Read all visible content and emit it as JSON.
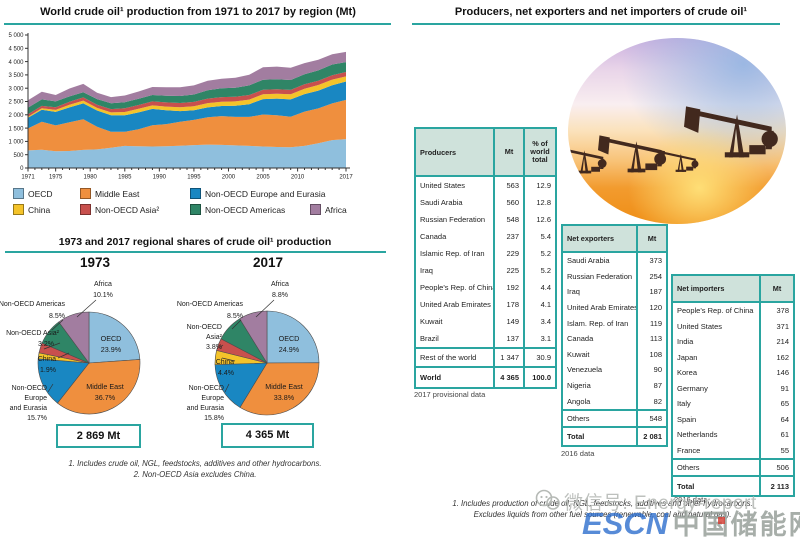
{
  "left_panel": {
    "shares_title": "1973 and 2017 regional shares of crude oil¹ production",
    "footnotes": [
      "1. Includes crude oil, NGL, feedstocks, additives and other hydrocarbons.",
      "2. Non-OECD Asia excludes China."
    ]
  },
  "legend": {
    "items": [
      {
        "label": "OECD",
        "color": "#8fbfdd"
      },
      {
        "label": "Middle East",
        "color": "#ef8f3e"
      },
      {
        "label": "Non-OECD Europe and Eurasia",
        "color": "#1987c2"
      },
      {
        "label": "China",
        "color": "#f4c32a"
      },
      {
        "label": "Non-OECD Asia²",
        "color": "#c8504d"
      },
      {
        "label": "Non-OECD Americas",
        "color": "#2f8566"
      },
      {
        "label": "Africa",
        "color": "#a27da0"
      }
    ]
  },
  "right_panel": {
    "title": "Producers, net exporters and net importers of crude oil¹",
    "photo": "oil-pumpjacks-at-sunset",
    "footnotes": [
      "1. Includes production of crude oil, NGL, feedstocks, additives and other hydrocarbons.",
      "Excludes liquids from other fuel sources (renewable, coal and natural gas)."
    ]
  },
  "watermark": {
    "wechat_label": "微信号: Energy-report",
    "logo_escn": "ESCN",
    "logo_cn": "中国储能网"
  },
  "chart_data": [
    {
      "id": "world_production_by_region",
      "type": "area",
      "stacked": true,
      "title": "World crude oil¹ production from 1971 to 2017 by region (Mt)",
      "ylabel": "Mt",
      "ylim": [
        0,
        5000
      ],
      "ytick_step": 500,
      "xtick_labels": [
        1971,
        1975,
        1980,
        1985,
        1990,
        1995,
        2000,
        2005,
        2010,
        2017
      ],
      "x": [
        1971,
        1973,
        1975,
        1977,
        1979,
        1981,
        1983,
        1985,
        1987,
        1989,
        1991,
        1993,
        1995,
        1997,
        1999,
        2001,
        2003,
        2005,
        2007,
        2009,
        2011,
        2013,
        2015,
        2017
      ],
      "series": [
        {
          "name": "OECD",
          "color": "#8fbfdd",
          "values": [
            660,
            686,
            630,
            640,
            680,
            700,
            760,
            830,
            820,
            810,
            820,
            840,
            860,
            880,
            870,
            850,
            830,
            810,
            790,
            780,
            830,
            930,
            1050,
            1087
          ]
        },
        {
          "name": "Middle East",
          "color": "#ef8f3e",
          "values": [
            830,
            1053,
            970,
            1080,
            1150,
            850,
            600,
            530,
            640,
            800,
            830,
            900,
            950,
            1030,
            1080,
            1070,
            1090,
            1200,
            1190,
            1150,
            1290,
            1310,
            1380,
            1475
          ]
        },
        {
          "name": "Non-OECD Europe and Eurasia",
          "color": "#1987c2",
          "values": [
            400,
            450,
            510,
            560,
            600,
            610,
            625,
            620,
            630,
            610,
            520,
            400,
            360,
            370,
            380,
            420,
            480,
            580,
            630,
            650,
            660,
            670,
            680,
            690
          ]
        },
        {
          "name": "China",
          "color": "#f4c32a",
          "values": [
            40,
            55,
            75,
            95,
            105,
            100,
            105,
            125,
            135,
            135,
            140,
            145,
            150,
            160,
            160,
            165,
            170,
            180,
            185,
            190,
            200,
            210,
            215,
            192
          ]
        },
        {
          "name": "Non-OECD Asia²",
          "color": "#c8504d",
          "values": [
            90,
            92,
            100,
            115,
            120,
            120,
            125,
            140,
            145,
            150,
            155,
            160,
            165,
            170,
            175,
            175,
            175,
            170,
            168,
            165,
            165,
            163,
            165,
            166
          ]
        },
        {
          "name": "Non-OECD Americas",
          "color": "#2f8566",
          "values": [
            250,
            244,
            220,
            200,
            195,
            210,
            220,
            230,
            235,
            240,
            250,
            260,
            280,
            310,
            330,
            340,
            360,
            380,
            370,
            375,
            380,
            385,
            400,
            371
          ]
        },
        {
          "name": "Africa",
          "color": "#a27da0",
          "values": [
            280,
            290,
            240,
            300,
            310,
            240,
            230,
            250,
            270,
            300,
            320,
            330,
            340,
            360,
            360,
            370,
            400,
            470,
            480,
            460,
            420,
            400,
            390,
            384
          ]
        }
      ]
    },
    {
      "id": "regional_shares_1973",
      "type": "pie",
      "title": "1973",
      "total_label": "2 869 Mt",
      "slices": [
        {
          "label": "OECD",
          "pct": 23.9,
          "color": "#8fbfdd",
          "label_lines": [
            "OECD",
            "23.9%"
          ]
        },
        {
          "label": "Middle East",
          "pct": 36.7,
          "color": "#ef8f3e",
          "label_lines": [
            "Middle East",
            "36.7%"
          ]
        },
        {
          "label": "Non-OECD Europe and Eurasia",
          "pct": 15.7,
          "color": "#1987c2",
          "label_lines": [
            "Non-OECD",
            "Europe",
            "and Eurasia",
            "15.7%"
          ]
        },
        {
          "label": "China",
          "pct": 1.9,
          "color": "#f4c32a",
          "label_lines": [
            "China",
            "1.9%"
          ]
        },
        {
          "label": "Non-OECD Asia²",
          "pct": 3.2,
          "color": "#c8504d",
          "label_lines": [
            "Non-OECD Asia²",
            "3.2%"
          ]
        },
        {
          "label": "Non-OECD Americas",
          "pct": 8.5,
          "color": "#2f8566",
          "label_lines": [
            "Non-OECD Americas",
            "8.5%"
          ]
        },
        {
          "label": "Africa",
          "pct": 10.1,
          "color": "#a27da0",
          "label_lines": [
            "Africa",
            "10.1%"
          ]
        }
      ]
    },
    {
      "id": "regional_shares_2017",
      "type": "pie",
      "title": "2017",
      "total_label": "4 365 Mt",
      "slices": [
        {
          "label": "OECD",
          "pct": 24.9,
          "color": "#8fbfdd",
          "label_lines": [
            "OECD",
            "24.9%"
          ]
        },
        {
          "label": "Middle East",
          "pct": 33.8,
          "color": "#ef8f3e",
          "label_lines": [
            "Middle East",
            "33.8%"
          ]
        },
        {
          "label": "Non-OECD Europe and Eurasia",
          "pct": 15.8,
          "color": "#1987c2",
          "label_lines": [
            "Non-OECD",
            "Europe",
            "and Eurasia",
            "15.8%"
          ]
        },
        {
          "label": "China",
          "pct": 4.4,
          "color": "#f4c32a",
          "label_lines": [
            "China",
            "4.4%"
          ]
        },
        {
          "label": "Non-OECD Asia²",
          "pct": 3.8,
          "color": "#c8504d",
          "label_lines": [
            "Non-OECD",
            "Asia²",
            "3.8%"
          ]
        },
        {
          "label": "Non-OECD Americas",
          "pct": 8.5,
          "color": "#2f8566",
          "label_lines": [
            "Non-OECD Americas",
            "8.5%"
          ]
        },
        {
          "label": "Africa",
          "pct": 8.8,
          "color": "#a27da0",
          "label_lines": [
            "Africa",
            "8.8%"
          ]
        }
      ]
    },
    {
      "id": "producers",
      "type": "table",
      "columns": [
        "Producers",
        "Mt",
        "% of world total"
      ],
      "rows": [
        [
          "United States",
          "563",
          "12.9"
        ],
        [
          "Saudi Arabia",
          "560",
          "12.8"
        ],
        [
          "Russian Federation",
          "548",
          "12.6"
        ],
        [
          "Canada",
          "237",
          "5.4"
        ],
        [
          "Islamic Rep. of Iran",
          "229",
          "5.2"
        ],
        [
          "Iraq",
          "225",
          "5.2"
        ],
        [
          "People's Rep. of China",
          "192",
          "4.4"
        ],
        [
          "United Arab Emirates",
          "178",
          "4.1"
        ],
        [
          "Kuwait",
          "149",
          "3.4"
        ],
        [
          "Brazil",
          "137",
          "3.1"
        ]
      ],
      "subtotal_row": [
        "Rest of the world",
        "1 347",
        "30.9"
      ],
      "total_row": [
        "World",
        "4 365",
        "100.0"
      ],
      "note": "2017 provisional data"
    },
    {
      "id": "net_exporters",
      "type": "table",
      "columns": [
        "Net exporters",
        "Mt"
      ],
      "rows": [
        [
          "Saudi Arabia",
          "373"
        ],
        [
          "Russian Federation",
          "254"
        ],
        [
          "Iraq",
          "187"
        ],
        [
          "United Arab Emirates",
          "120"
        ],
        [
          "Islam. Rep. of Iran",
          "119"
        ],
        [
          "Canada",
          "113"
        ],
        [
          "Kuwait",
          "108"
        ],
        [
          "Venezuela",
          "90"
        ],
        [
          "Nigeria",
          "87"
        ],
        [
          "Angola",
          "82"
        ]
      ],
      "subtotal_row": [
        "Others",
        "548"
      ],
      "total_row": [
        "Total",
        "2 081"
      ],
      "note": "2016 data"
    },
    {
      "id": "net_importers",
      "type": "table",
      "columns": [
        "Net importers",
        "Mt"
      ],
      "rows": [
        [
          "People's Rep. of China",
          "378"
        ],
        [
          "United States",
          "371"
        ],
        [
          "India",
          "214"
        ],
        [
          "Japan",
          "162"
        ],
        [
          "Korea",
          "146"
        ],
        [
          "Germany",
          "91"
        ],
        [
          "Italy",
          "65"
        ],
        [
          "Spain",
          "64"
        ],
        [
          "Netherlands",
          "61"
        ],
        [
          "France",
          "55"
        ]
      ],
      "subtotal_row": [
        "Others",
        "506"
      ],
      "total_row": [
        "Total",
        "2 113"
      ],
      "note": "2016 data"
    }
  ]
}
